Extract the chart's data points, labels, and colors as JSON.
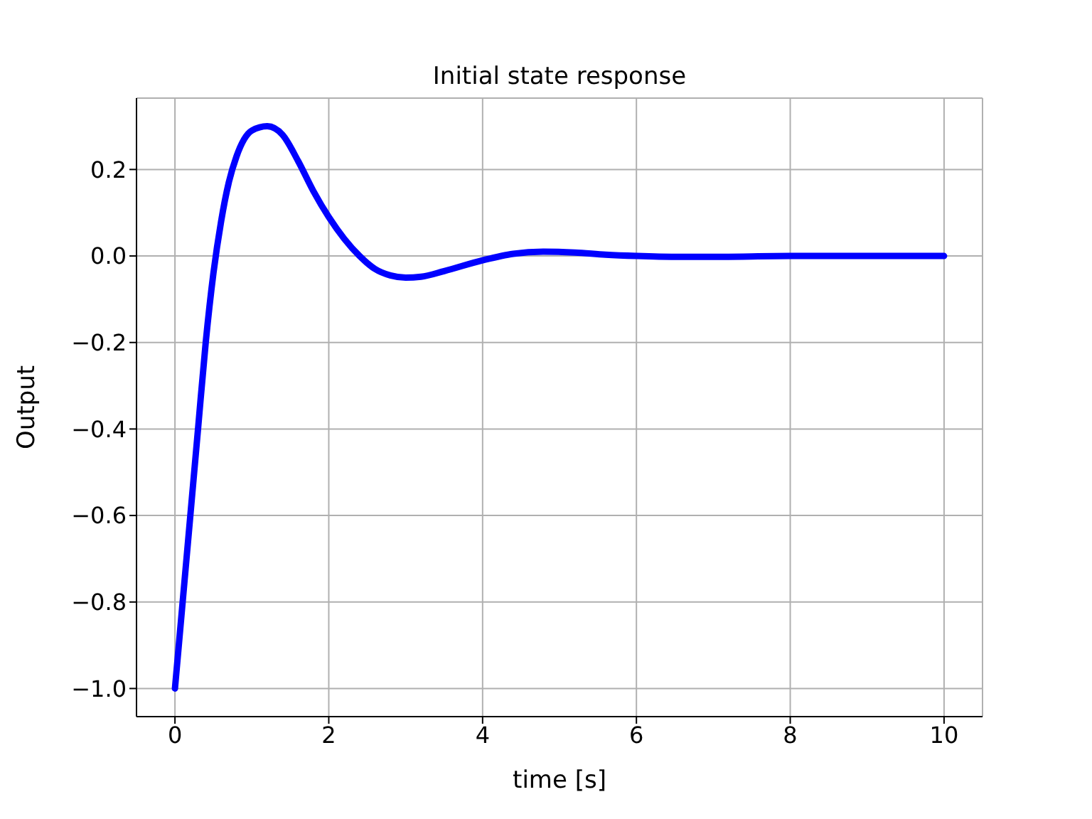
{
  "chart_data": {
    "type": "line",
    "title": "Initial state response",
    "xlabel": "time [s]",
    "ylabel": "Output",
    "x": [
      0,
      0.1,
      0.2,
      0.3,
      0.4,
      0.5,
      0.6,
      0.7,
      0.8,
      0.9,
      1.0,
      1.2,
      1.4,
      1.6,
      1.8,
      2.0,
      2.2,
      2.4,
      2.6,
      2.8,
      3.0,
      3.2,
      3.5,
      4.0,
      4.4,
      4.8,
      5.2,
      5.6,
      6.0,
      6.5,
      7.0,
      8.0,
      9.0,
      10.0
    ],
    "series": [
      {
        "color": "#0000ff",
        "values": [
          -1,
          -0.8,
          -0.6,
          -0.4,
          -0.2,
          -0.04,
          0.08,
          0.17,
          0.23,
          0.27,
          0.29,
          0.3,
          0.28,
          0.22,
          0.15,
          0.09,
          0.04,
          0,
          -0.03,
          -0.045,
          -0.05,
          -0.048,
          -0.035,
          -0.01,
          0.005,
          0.01,
          0.008,
          0.003,
          0,
          -0.002,
          -0.002,
          0,
          0,
          0
        ]
      }
    ],
    "xlim": [
      -0.5,
      10.5
    ],
    "ylim": [
      -1.065,
      0.365
    ],
    "xticks": [
      0,
      2,
      4,
      6,
      8,
      10
    ],
    "yticks": [
      {
        "value": -1,
        "label": "−1.0"
      },
      -0.8,
      -0.6,
      -0.4,
      -0.2,
      {
        "value": 0,
        "label": "0.0"
      },
      0.2
    ],
    "grid": true,
    "legend": false,
    "line_style": "solid",
    "marker": "none"
  }
}
